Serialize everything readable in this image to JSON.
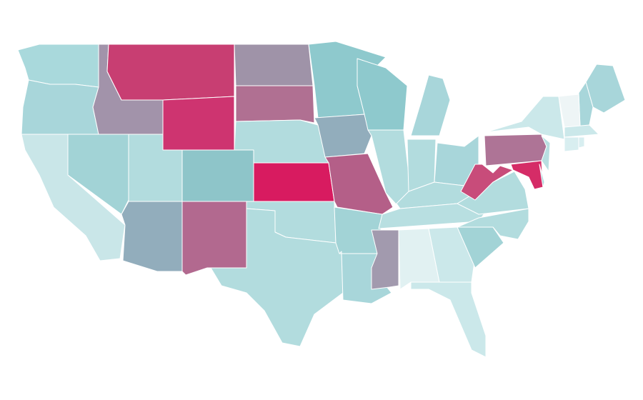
{
  "map": {
    "regions": [
      {
        "color": "#a9d9dc"
      },
      {
        "color": "#a8d6da"
      },
      {
        "color": "#c9e6e8"
      },
      {
        "color": "#a2d3d6"
      },
      {
        "color": "#a293aa"
      },
      {
        "color": "#c83e72"
      },
      {
        "color": "#ce3470"
      },
      {
        "color": "#b2dcde"
      },
      {
        "color": "#8ec5c9"
      },
      {
        "color": "#92adbc"
      },
      {
        "color": "#b2698f"
      },
      {
        "color": "#9f93a8"
      },
      {
        "color": "#b07092"
      },
      {
        "color": "#b2dcde"
      },
      {
        "color": "#d81b60"
      },
      {
        "color": "#b2dcde"
      },
      {
        "color": "#b2dcde"
      },
      {
        "color": "#8ec9cd"
      },
      {
        "color": "#92adbc"
      },
      {
        "color": "#b45f88"
      },
      {
        "color": "#a2d3d6"
      },
      {
        "color": "#a8d6da"
      },
      {
        "color": "#8ec9cd"
      },
      {
        "color": "#b2dcde"
      },
      {
        "color": "#a8d6da"
      },
      {
        "color": "#b2dcde"
      },
      {
        "color": "#a8d6da"
      },
      {
        "color": "#b2dcde"
      },
      {
        "color": "#b8dfe1"
      },
      {
        "color": "#a29aae"
      },
      {
        "color": "#e1f1f2"
      },
      {
        "color": "#cbe8ea"
      },
      {
        "color": "#cbe8ea"
      },
      {
        "color": "#a2d3d6"
      },
      {
        "color": "#b2dcde"
      },
      {
        "color": "#b2dcde"
      },
      {
        "color": "#c84c7a"
      },
      {
        "color": "#ae7496"
      },
      {
        "color": "#cbe8ea"
      },
      {
        "color": "#d52c67"
      },
      {
        "color": "#a8d6da"
      },
      {
        "color": "#b8dfe1"
      },
      {
        "color": "#a8d6da"
      },
      {
        "color": "#a8d6da"
      },
      {
        "color": "#eef5f6"
      },
      {
        "color": "#cbe8ea"
      },
      {
        "color": "#d8eef0"
      },
      {
        "color": "#d8eef0"
      }
    ]
  }
}
